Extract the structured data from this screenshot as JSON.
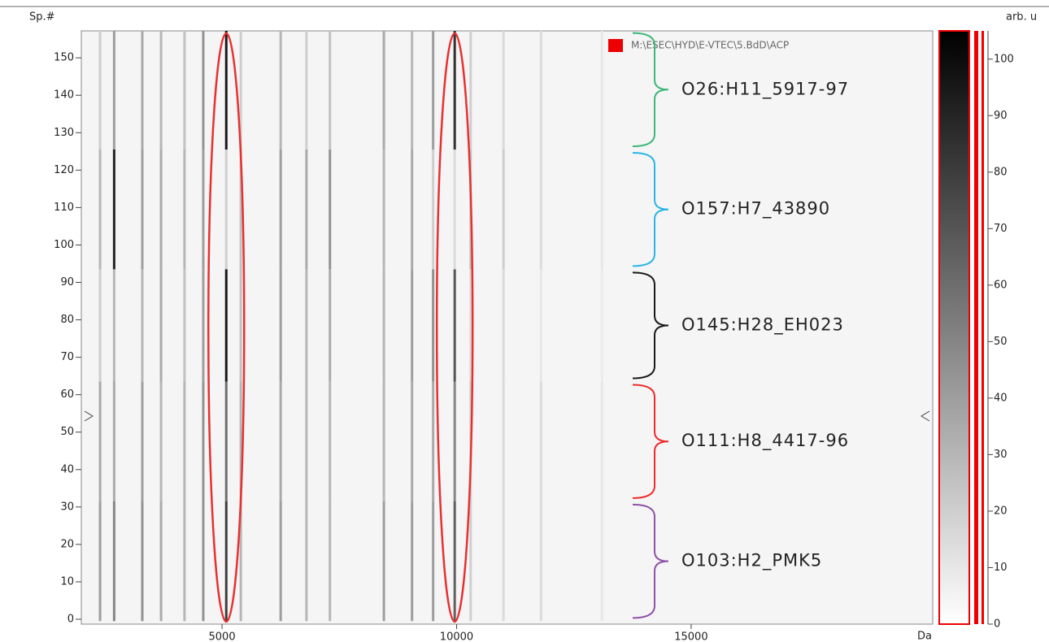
{
  "chart_data": {
    "type": "gel",
    "y_label": "Sp.#",
    "x_label": "Da",
    "colorbar_label": "arb. u",
    "file_path": "M:\\ESEC\\HYD\\E-VTEC\\5.BdD\\ACP",
    "xlim": [
      2000,
      20150
    ],
    "xticks": [
      5000,
      10000,
      15000
    ],
    "ylim": [
      -1.3,
      157.2
    ],
    "yticks": [
      0,
      10,
      20,
      30,
      40,
      50,
      60,
      70,
      80,
      90,
      100,
      110,
      120,
      130,
      140,
      150
    ],
    "zlim": [
      0,
      105
    ],
    "zticks": [
      0,
      10,
      20,
      30,
      40,
      50,
      60,
      70,
      80,
      90,
      100
    ],
    "highlights": [
      5090,
      9960
    ],
    "peaks": [
      2400,
      2700,
      3300,
      3700,
      4200,
      4600,
      5090,
      5400,
      6250,
      6800,
      7300,
      8450,
      9050,
      9500,
      9960,
      10300,
      11000,
      11800,
      13100
    ],
    "groups": [
      {
        "name": "O26:H11_5917-97",
        "color": "#3cb878",
        "sp_range": [
          126,
          157
        ],
        "values": [
          20,
          40,
          35,
          30,
          25,
          45,
          95,
          20,
          30,
          20,
          25,
          35,
          30,
          40,
          85,
          20,
          15,
          15,
          10
        ]
      },
      {
        "name": "O157:H7_43890",
        "color": "#29b5e8",
        "sp_range": [
          94,
          125
        ],
        "values": [
          30,
          90,
          40,
          35,
          30,
          40,
          20,
          25,
          40,
          35,
          45,
          30,
          35,
          20,
          15,
          25,
          20,
          15,
          10
        ]
      },
      {
        "name": "O145:H28_EH023",
        "color": "#1a1a1a",
        "sp_range": [
          64,
          93
        ],
        "values": [
          20,
          30,
          30,
          35,
          25,
          40,
          95,
          25,
          40,
          30,
          35,
          30,
          40,
          45,
          70,
          15,
          15,
          10,
          8
        ]
      },
      {
        "name": "O111:H8_4417-96",
        "color": "#ee2b2b",
        "sp_range": [
          32,
          63
        ],
        "values": [
          35,
          35,
          40,
          30,
          30,
          45,
          60,
          30,
          35,
          30,
          30,
          30,
          35,
          35,
          50,
          20,
          15,
          15,
          10
        ]
      },
      {
        "name": "O103:H2_PMK5",
        "color": "#8e52a8",
        "sp_range": [
          0,
          31
        ],
        "values": [
          40,
          50,
          45,
          35,
          30,
          45,
          80,
          30,
          40,
          30,
          30,
          40,
          40,
          40,
          65,
          20,
          15,
          15,
          10
        ]
      }
    ]
  }
}
